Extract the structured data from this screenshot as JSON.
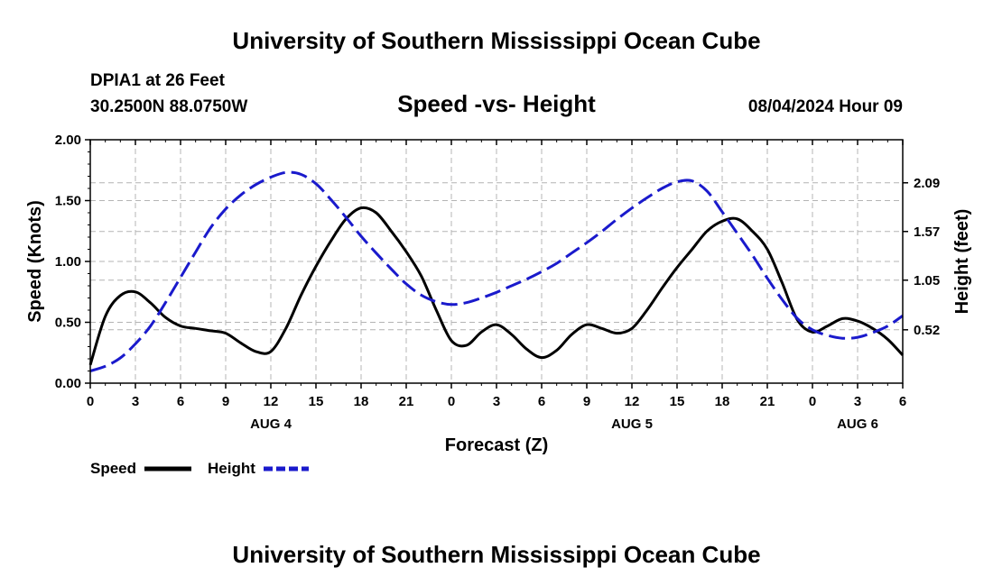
{
  "header": {
    "title": "University of Southern Mississippi Ocean Cube",
    "station": "DPIA1 at 26 Feet",
    "coords": "30.2500N  88.0750W",
    "datetime": "08/04/2024 Hour 09"
  },
  "footer": {
    "title": "University of Southern Mississippi Ocean Cube"
  },
  "chart_data": {
    "type": "line",
    "title": "Speed -vs- Height",
    "xlabel": "Forecast (Z)",
    "ylabel_left": "Speed (Knots)",
    "ylabel_right": "Height (feet)",
    "xlim": [
      0,
      54
    ],
    "ylim_left": [
      0,
      2.0
    ],
    "ylim_right": [
      -0.05,
      2.55
    ],
    "x_tick_values": [
      0,
      3,
      6,
      9,
      12,
      15,
      18,
      21,
      24,
      27,
      30,
      33,
      36,
      39,
      42,
      45,
      48,
      51,
      54
    ],
    "x_tick_labels": [
      "0",
      "3",
      "6",
      "9",
      "12",
      "15",
      "18",
      "21",
      "0",
      "3",
      "6",
      "9",
      "12",
      "15",
      "18",
      "21",
      "0",
      "3",
      "6"
    ],
    "day_labels": [
      {
        "x": 12,
        "label": "AUG 4"
      },
      {
        "x": 36,
        "label": "AUG 5"
      },
      {
        "x": 51,
        "label": "AUG 6"
      }
    ],
    "left_ticks": [
      "0.00",
      "0.50",
      "1.00",
      "1.50",
      "2.00"
    ],
    "left_tick_values": [
      0,
      0.5,
      1.0,
      1.5,
      2.0
    ],
    "right_ticks": [
      "0.52",
      "1.05",
      "1.57",
      "2.09"
    ],
    "right_tick_values": [
      0.52,
      1.05,
      1.57,
      2.09
    ],
    "grid": true,
    "series": [
      {
        "name": "Speed",
        "axis": "left",
        "color": "#000000",
        "dashed": false,
        "x": [
          0,
          1,
          2,
          3,
          4,
          5,
          6,
          7,
          8,
          9,
          10,
          11,
          12,
          13,
          14,
          15,
          16,
          17,
          18,
          19,
          20,
          21,
          22,
          23,
          24,
          25,
          26,
          27,
          28,
          29,
          30,
          31,
          32,
          33,
          34,
          35,
          36,
          37,
          38,
          39,
          40,
          41,
          42,
          43,
          44,
          45,
          46,
          47,
          48,
          49,
          50,
          51,
          52,
          53,
          54
        ],
        "values": [
          0.15,
          0.55,
          0.72,
          0.75,
          0.66,
          0.54,
          0.47,
          0.45,
          0.43,
          0.41,
          0.33,
          0.26,
          0.26,
          0.45,
          0.72,
          0.96,
          1.17,
          1.35,
          1.44,
          1.4,
          1.25,
          1.08,
          0.88,
          0.6,
          0.35,
          0.31,
          0.42,
          0.48,
          0.4,
          0.28,
          0.21,
          0.27,
          0.4,
          0.48,
          0.45,
          0.41,
          0.45,
          0.6,
          0.78,
          0.95,
          1.1,
          1.25,
          1.33,
          1.35,
          1.25,
          1.1,
          0.82,
          0.52,
          0.42,
          0.47,
          0.53,
          0.51,
          0.45,
          0.36,
          0.23
        ]
      },
      {
        "name": "Height",
        "axis": "right",
        "color": "#1a1acc",
        "dashed": true,
        "x": [
          0,
          1,
          2,
          3,
          4,
          5,
          6,
          7,
          8,
          9,
          10,
          11,
          12,
          13,
          14,
          15,
          16,
          17,
          18,
          19,
          20,
          21,
          22,
          23,
          24,
          25,
          26,
          27,
          28,
          29,
          30,
          31,
          32,
          33,
          34,
          35,
          36,
          37,
          38,
          39,
          40,
          41,
          42,
          43,
          44,
          45,
          46,
          47,
          48,
          49,
          50,
          51,
          52,
          53,
          54
        ],
        "values": [
          0.08,
          0.13,
          0.22,
          0.37,
          0.56,
          0.81,
          1.08,
          1.35,
          1.61,
          1.81,
          1.96,
          2.07,
          2.15,
          2.2,
          2.18,
          2.08,
          1.91,
          1.72,
          1.52,
          1.34,
          1.17,
          1.01,
          0.89,
          0.82,
          0.79,
          0.81,
          0.86,
          0.92,
          0.99,
          1.06,
          1.14,
          1.23,
          1.34,
          1.45,
          1.57,
          1.7,
          1.82,
          1.93,
          2.03,
          2.1,
          2.11,
          2.0,
          1.78,
          1.55,
          1.32,
          1.07,
          0.84,
          0.64,
          0.52,
          0.46,
          0.43,
          0.44,
          0.49,
          0.56,
          0.67
        ]
      }
    ],
    "legend": {
      "position": "bottom-left",
      "items": [
        {
          "label": "Speed",
          "color": "#000000",
          "dashed": false
        },
        {
          "label": "Height",
          "color": "#1a1acc",
          "dashed": true
        }
      ]
    }
  }
}
